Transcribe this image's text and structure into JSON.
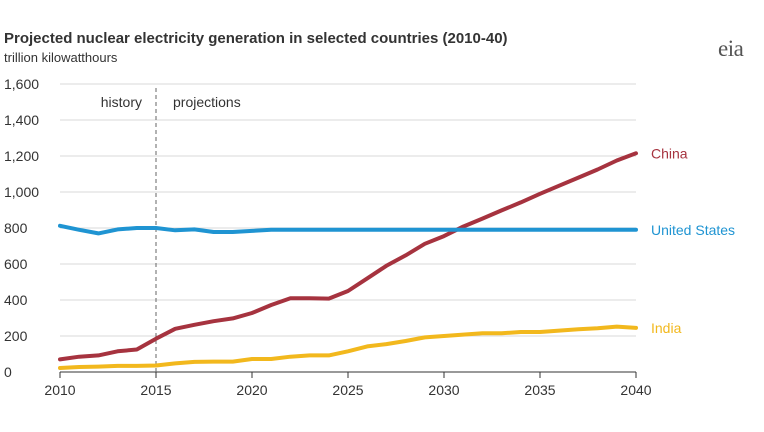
{
  "header": {
    "title": "Projected nuclear electricity generation in selected countries (2010-40)",
    "subtitle": "trillion kilowatthours",
    "logo_text": "eia"
  },
  "chart_data": {
    "type": "line",
    "title": "Projected nuclear electricity generation in selected countries (2010-40)",
    "ylabel": "trillion kilowatthours",
    "xlabel": "",
    "xlim": [
      2010,
      2040
    ],
    "ylim": [
      0,
      1600
    ],
    "x_ticks": [
      2010,
      2015,
      2020,
      2025,
      2030,
      2035,
      2040
    ],
    "y_ticks": [
      0,
      200,
      400,
      600,
      800,
      1000,
      1200,
      1400,
      1600
    ],
    "x_tick_labels": [
      "2010",
      "2015",
      "2020",
      "2025",
      "2030",
      "2035",
      "2040"
    ],
    "y_tick_labels": [
      "0",
      "200",
      "400",
      "600",
      "800",
      "1,000",
      "1,200",
      "1,400",
      "1,600"
    ],
    "grid": "horizontal",
    "divider": {
      "x": 2015,
      "style": "dashed"
    },
    "regions": [
      {
        "label": "history"
      },
      {
        "label": "projections"
      }
    ],
    "x": [
      2010,
      2011,
      2012,
      2013,
      2014,
      2015,
      2016,
      2017,
      2018,
      2019,
      2020,
      2021,
      2022,
      2023,
      2024,
      2025,
      2026,
      2027,
      2028,
      2029,
      2030,
      2031,
      2032,
      2033,
      2034,
      2035,
      2036,
      2037,
      2038,
      2039,
      2040
    ],
    "series": [
      {
        "name": "China",
        "color": "#a6333f",
        "values": [
          70,
          85,
          92,
          115,
          125,
          185,
          240,
          262,
          282,
          298,
          328,
          372,
          410,
          410,
          408,
          450,
          520,
          590,
          648,
          712,
          755,
          808,
          852,
          898,
          942,
          990,
          1035,
          1080,
          1125,
          1175,
          1215
        ]
      },
      {
        "name": "United States",
        "color": "#1f94d2",
        "values": [
          812,
          790,
          770,
          792,
          800,
          800,
          787,
          792,
          778,
          778,
          784,
          790,
          790,
          790,
          790,
          790,
          790,
          790,
          790,
          790,
          790,
          790,
          790,
          790,
          790,
          790,
          790,
          790,
          790,
          790,
          790
        ]
      },
      {
        "name": "India",
        "color": "#f2b81d",
        "values": [
          22,
          28,
          30,
          34,
          34,
          36,
          48,
          56,
          58,
          58,
          72,
          72,
          85,
          92,
          92,
          115,
          142,
          155,
          172,
          192,
          200,
          208,
          215,
          215,
          222,
          222,
          230,
          237,
          243,
          252,
          245
        ]
      }
    ]
  }
}
